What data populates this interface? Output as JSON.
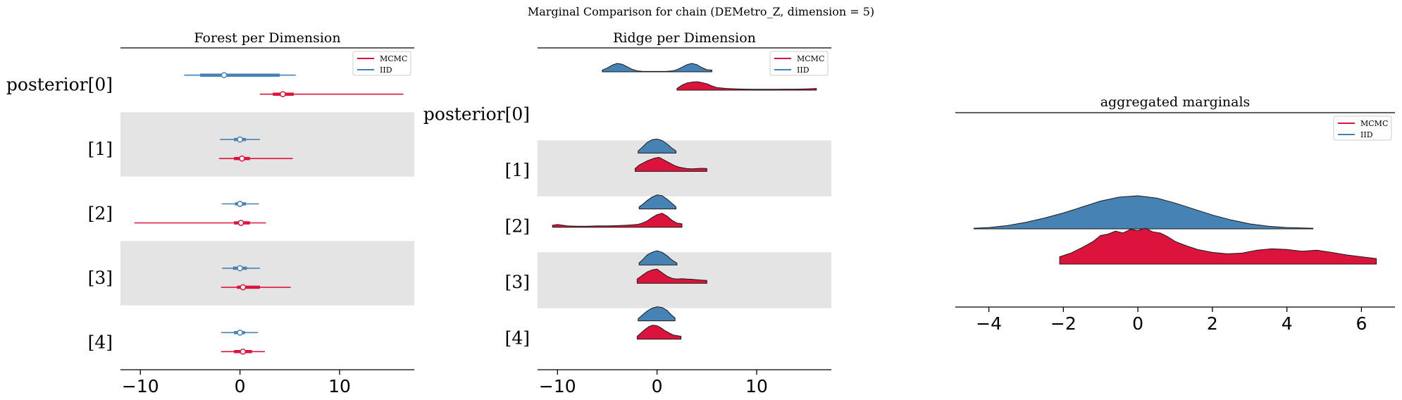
{
  "title": "Marginal Comparison for chain (DEMetro_Z, dimension = 5)",
  "colors": {
    "mcmc": "#dc143c",
    "iid": "#4682b4",
    "band": "#e4e4e4"
  },
  "chart_data": [
    {
      "type": "forest",
      "title": "Forest per Dimension",
      "row_labels": [
        "posterior[0]",
        "[1]",
        "[2]",
        "[3]",
        "[4]"
      ],
      "xlim": [
        -12,
        17.5
      ],
      "xticks": [
        -10,
        0,
        10
      ],
      "xtick_labels": [
        "−10",
        "0",
        "10"
      ],
      "legend": {
        "position": "top-right",
        "entries": [
          "MCMC",
          "IID"
        ]
      },
      "series": [
        {
          "name": "IID",
          "rows": [
            {
              "hdi": [
                -5.6,
                5.6
              ],
              "iqr": [
                -4.0,
                4.0
              ],
              "median": -1.6
            },
            {
              "hdi": [
                -2.0,
                2.0
              ],
              "iqr": [
                -0.6,
                0.6
              ],
              "median": 0.0
            },
            {
              "hdi": [
                -1.8,
                1.9
              ],
              "iqr": [
                -0.5,
                0.6
              ],
              "median": 0.0
            },
            {
              "hdi": [
                -1.8,
                2.0
              ],
              "iqr": [
                -0.7,
                0.7
              ],
              "median": 0.0
            },
            {
              "hdi": [
                -1.9,
                1.8
              ],
              "iqr": [
                -0.6,
                0.5
              ],
              "median": 0.0
            }
          ]
        },
        {
          "name": "MCMC",
          "rows": [
            {
              "hdi": [
                2.0,
                16.4
              ],
              "iqr": [
                3.3,
                5.4
              ],
              "median": 4.3
            },
            {
              "hdi": [
                -2.1,
                5.3
              ],
              "iqr": [
                -0.6,
                1.0
              ],
              "median": 0.2
            },
            {
              "hdi": [
                -10.6,
                2.6
              ],
              "iqr": [
                -0.6,
                1.0
              ],
              "median": 0.1
            },
            {
              "hdi": [
                -1.9,
                5.1
              ],
              "iqr": [
                -0.3,
                2.0
              ],
              "median": 0.3
            },
            {
              "hdi": [
                -1.9,
                2.5
              ],
              "iqr": [
                -0.6,
                1.2
              ],
              "median": 0.3
            }
          ]
        }
      ]
    },
    {
      "type": "ridge",
      "title": "Ridge per Dimension",
      "row_labels": [
        "posterior[0]",
        "[1]",
        "[2]",
        "[3]",
        "[4]"
      ],
      "xlim": [
        -12,
        17.5
      ],
      "xticks": [
        -10,
        0,
        10
      ],
      "xtick_labels": [
        "−10",
        "0",
        "10"
      ],
      "legend": {
        "position": "top-right",
        "entries": [
          "MCMC",
          "IID"
        ]
      },
      "series": [
        {
          "name": "IID",
          "ridges": [
            {
              "x": [
                -5.5,
                -5.0,
                -4.5,
                -4.0,
                -3.5,
                -3.0,
                -2.5,
                -2.0,
                -1.5,
                -1.0,
                -0.5,
                0.0,
                0.5,
                1.0,
                1.5,
                2.0,
                2.5,
                3.0,
                3.5,
                4.0,
                4.5,
                5.0,
                5.5
              ],
              "y": [
                0.2,
                0.45,
                0.8,
                1.0,
                0.9,
                0.6,
                0.3,
                0.12,
                0.06,
                0.05,
                0.05,
                0.05,
                0.05,
                0.06,
                0.1,
                0.25,
                0.55,
                0.85,
                1.0,
                0.85,
                0.5,
                0.25,
                0.2
              ]
            },
            {
              "x": [
                -1.9,
                -1.5,
                -1.0,
                -0.5,
                0.0,
                0.5,
                1.0,
                1.5,
                1.9
              ],
              "y": [
                0.15,
                0.4,
                0.75,
                0.95,
                1.0,
                0.9,
                0.65,
                0.35,
                0.15
              ]
            },
            {
              "x": [
                -1.8,
                -1.4,
                -1.0,
                -0.5,
                0.0,
                0.5,
                1.0,
                1.5,
                1.9
              ],
              "y": [
                0.15,
                0.35,
                0.6,
                0.85,
                1.0,
                0.95,
                0.7,
                0.4,
                0.15
              ]
            },
            {
              "x": [
                -1.8,
                -1.4,
                -1.0,
                -0.5,
                0.0,
                0.5,
                1.0,
                1.5,
                2.0
              ],
              "y": [
                0.15,
                0.4,
                0.7,
                0.9,
                1.0,
                0.9,
                0.65,
                0.35,
                0.12
              ]
            },
            {
              "x": [
                -1.9,
                -1.5,
                -1.0,
                -0.5,
                0.0,
                0.5,
                1.0,
                1.4,
                1.8
              ],
              "y": [
                0.15,
                0.4,
                0.7,
                0.9,
                1.0,
                0.95,
                0.75,
                0.45,
                0.2
              ]
            }
          ]
        },
        {
          "name": "MCMC",
          "ridges": [
            {
              "x": [
                2.0,
                2.5,
                3.0,
                3.5,
                4.0,
                4.5,
                5.0,
                5.5,
                6.0,
                7.0,
                8.0,
                9.0,
                10.0,
                11.0,
                12.0,
                13.0,
                14.0,
                15.0,
                16.0
              ],
              "y": [
                0.2,
                0.6,
                0.85,
                0.95,
                1.0,
                0.9,
                0.75,
                0.5,
                0.3,
                0.2,
                0.15,
                0.12,
                0.1,
                0.1,
                0.1,
                0.12,
                0.12,
                0.15,
                0.2
              ]
            },
            {
              "x": [
                -2.2,
                -1.8,
                -1.4,
                -1.0,
                -0.6,
                -0.2,
                0.2,
                0.6,
                1.0,
                1.4,
                1.8,
                2.2,
                2.6,
                3.0,
                3.5,
                4.0,
                4.5,
                5.0
              ],
              "y": [
                0.2,
                0.45,
                0.6,
                0.75,
                0.85,
                0.95,
                1.0,
                0.85,
                0.7,
                0.55,
                0.4,
                0.3,
                0.25,
                0.2,
                0.18,
                0.2,
                0.22,
                0.2
              ]
            },
            {
              "x": [
                -10.5,
                -10.0,
                -9.0,
                -8.0,
                -7.0,
                -6.0,
                -5.0,
                -4.0,
                -3.0,
                -2.0,
                -1.5,
                -1.0,
                -0.5,
                0.0,
                0.5,
                1.0,
                1.5,
                2.0,
                2.5
              ],
              "y": [
                0.15,
                0.2,
                0.1,
                0.08,
                0.08,
                0.1,
                0.1,
                0.12,
                0.15,
                0.2,
                0.3,
                0.45,
                0.7,
                0.9,
                1.0,
                0.8,
                0.5,
                0.3,
                0.25
              ]
            },
            {
              "x": [
                -2.0,
                -1.5,
                -1.0,
                -0.5,
                0.0,
                0.5,
                1.0,
                1.5,
                2.0,
                2.5,
                3.0,
                3.5,
                4.0,
                4.5,
                5.0
              ],
              "y": [
                0.3,
                0.55,
                0.8,
                0.95,
                1.0,
                0.75,
                0.5,
                0.35,
                0.3,
                0.32,
                0.3,
                0.28,
                0.25,
                0.22,
                0.2
              ]
            },
            {
              "x": [
                -2.0,
                -1.6,
                -1.2,
                -0.8,
                -0.4,
                0.0,
                0.4,
                0.8,
                1.2,
                1.6,
                2.0,
                2.4
              ],
              "y": [
                0.2,
                0.45,
                0.7,
                0.9,
                1.0,
                0.95,
                0.8,
                0.6,
                0.45,
                0.3,
                0.25,
                0.2
              ]
            }
          ]
        }
      ]
    },
    {
      "type": "ridge",
      "title": "aggregated marginals",
      "xlim": [
        -4.9,
        6.9
      ],
      "xticks": [
        -4,
        -2,
        0,
        2,
        4,
        6
      ],
      "xtick_labels": [
        "−4",
        "−2",
        "0",
        "2",
        "4",
        "6"
      ],
      "legend": {
        "position": "top-right",
        "entries": [
          "MCMC",
          "IID"
        ]
      },
      "series": [
        {
          "name": "IID",
          "x": [
            -4.4,
            -4.0,
            -3.5,
            -3.0,
            -2.5,
            -2.0,
            -1.5,
            -1.0,
            -0.5,
            0.0,
            0.5,
            1.0,
            1.5,
            2.0,
            2.5,
            3.0,
            3.5,
            4.0,
            4.7
          ],
          "y": [
            0.02,
            0.04,
            0.1,
            0.2,
            0.33,
            0.48,
            0.66,
            0.84,
            0.96,
            1.0,
            0.93,
            0.78,
            0.6,
            0.42,
            0.27,
            0.15,
            0.08,
            0.04,
            0.02
          ]
        },
        {
          "name": "MCMC",
          "x": [
            -2.1,
            -1.8,
            -1.5,
            -1.2,
            -1.0,
            -0.8,
            -0.6,
            -0.4,
            -0.2,
            0.0,
            0.2,
            0.4,
            0.6,
            0.8,
            1.0,
            1.3,
            1.6,
            2.0,
            2.4,
            2.8,
            3.2,
            3.6,
            4.0,
            4.4,
            4.8,
            5.2,
            5.6,
            6.0,
            6.4
          ],
          "y": [
            0.2,
            0.3,
            0.45,
            0.62,
            0.78,
            0.82,
            0.9,
            0.85,
            0.95,
            0.92,
            0.98,
            0.88,
            0.85,
            0.75,
            0.62,
            0.5,
            0.4,
            0.32,
            0.28,
            0.3,
            0.38,
            0.42,
            0.4,
            0.35,
            0.38,
            0.32,
            0.25,
            0.2,
            0.15
          ]
        }
      ]
    }
  ]
}
